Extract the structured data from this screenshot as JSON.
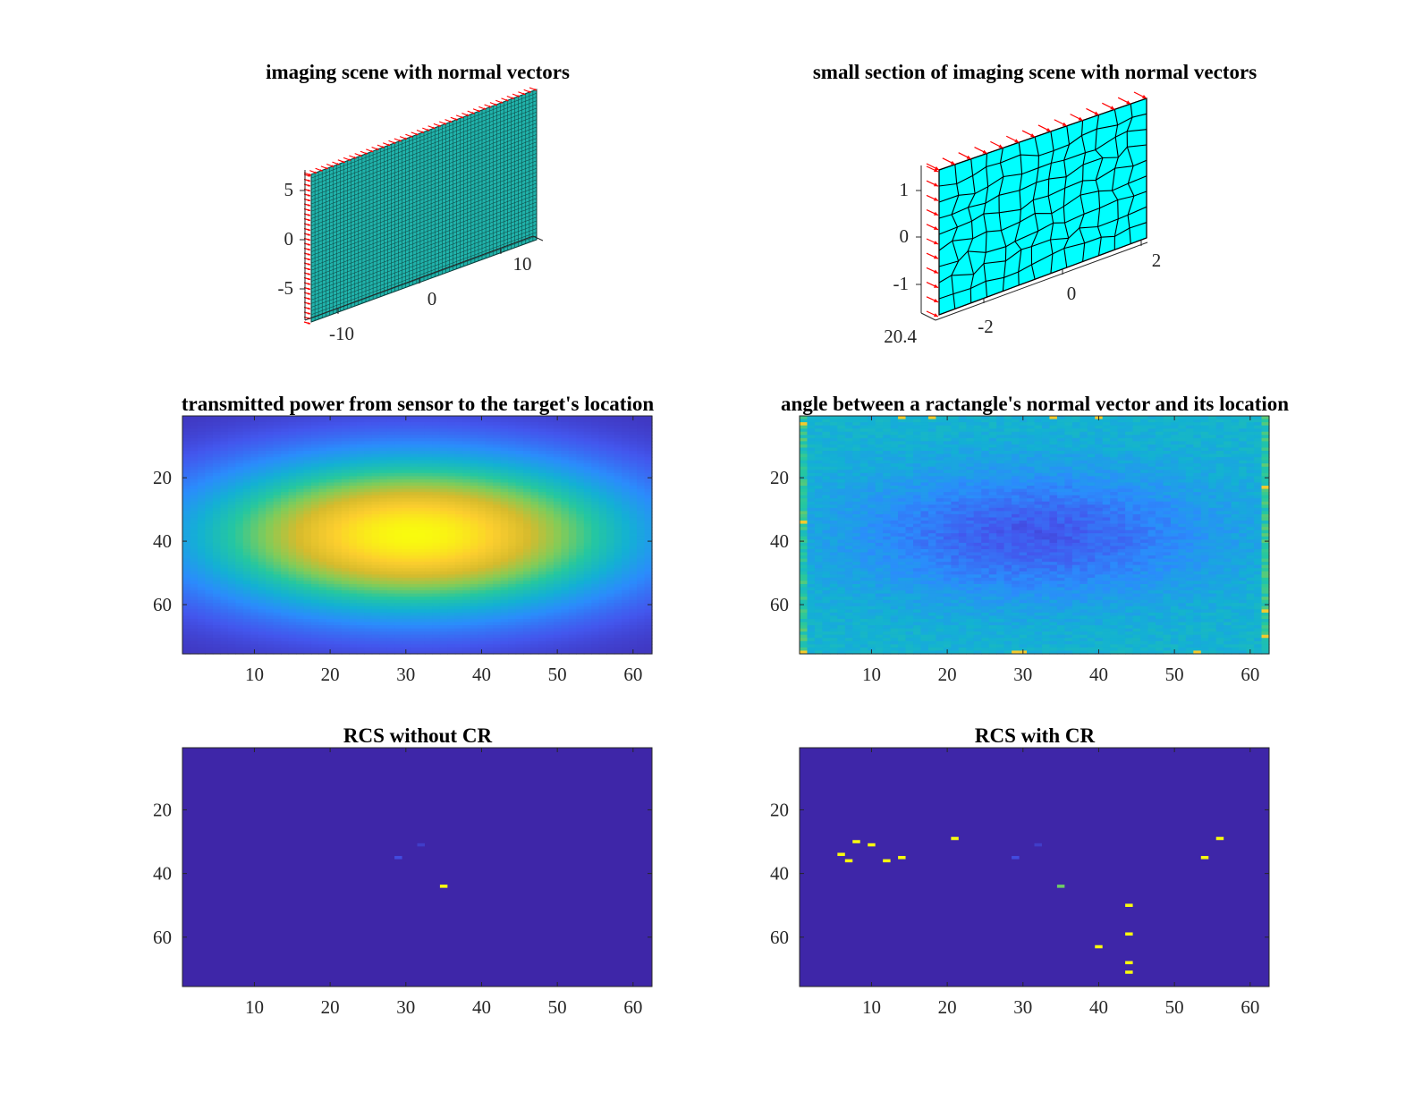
{
  "chart_data": [
    {
      "type": "surface3d",
      "title": "imaging scene with normal vectors",
      "surface_color": "#20b2aa",
      "vector_color": "#ff0000",
      "z_ticks": [
        "5",
        "0",
        "-5"
      ],
      "x_ticks": [
        "-10",
        "0",
        "10"
      ]
    },
    {
      "type": "surface3d",
      "title": "small section of imaging scene with normal vectors",
      "surface_color": "#00ffff",
      "vector_color": "#ff0000",
      "z_ticks": [
        "1",
        "0",
        "-1"
      ],
      "x_ticks": [
        "-2",
        "0",
        "2"
      ],
      "y_ticks": [
        "20.4"
      ]
    },
    {
      "type": "heatmap",
      "title": "transmitted power from sensor to the target's location",
      "colormap": "parula",
      "x_range": [
        0.5,
        62.5
      ],
      "y_range": [
        0.5,
        75.5
      ],
      "x_ticks": [
        "10",
        "20",
        "30",
        "40",
        "50",
        "60"
      ],
      "y_ticks": [
        "20",
        "40",
        "60"
      ],
      "peak": {
        "x": 31,
        "y": 38
      }
    },
    {
      "type": "heatmap",
      "title": "angle between a ractangle's normal vector and its location",
      "colormap": "parula",
      "x_range": [
        0.5,
        62.5
      ],
      "y_range": [
        0.5,
        75.5
      ],
      "x_ticks": [
        "10",
        "20",
        "30",
        "40",
        "50",
        "60"
      ],
      "y_ticks": [
        "20",
        "40",
        "60"
      ],
      "minimum": {
        "x": 31,
        "y": 38
      }
    },
    {
      "type": "heatmap",
      "title": "RCS without CR",
      "colormap": "parula",
      "x_range": [
        0.5,
        62.5
      ],
      "y_range": [
        0.5,
        75.5
      ],
      "x_ticks": [
        "10",
        "20",
        "30",
        "40",
        "50",
        "60"
      ],
      "y_ticks": [
        "20",
        "40",
        "60"
      ],
      "background_color": "#3e26a8",
      "points": [
        {
          "x": 35,
          "y": 44,
          "level": 1.0
        },
        {
          "x": 29,
          "y": 35,
          "level": 0.1
        },
        {
          "x": 32,
          "y": 31,
          "level": 0.06
        }
      ]
    },
    {
      "type": "heatmap",
      "title": "RCS with CR",
      "colormap": "parula",
      "x_range": [
        0.5,
        62.5
      ],
      "y_range": [
        0.5,
        75.5
      ],
      "x_ticks": [
        "10",
        "20",
        "30",
        "40",
        "50",
        "60"
      ],
      "y_ticks": [
        "20",
        "40",
        "60"
      ],
      "background_color": "#3e26a8",
      "points": [
        {
          "x": 6,
          "y": 34,
          "level": 1.0
        },
        {
          "x": 7,
          "y": 36,
          "level": 1.0
        },
        {
          "x": 8,
          "y": 30,
          "level": 1.0
        },
        {
          "x": 10,
          "y": 31,
          "level": 1.0
        },
        {
          "x": 12,
          "y": 36,
          "level": 1.0
        },
        {
          "x": 14,
          "y": 35,
          "level": 1.0
        },
        {
          "x": 21,
          "y": 29,
          "level": 1.0
        },
        {
          "x": 35,
          "y": 44,
          "level": 0.6
        },
        {
          "x": 29,
          "y": 35,
          "level": 0.1
        },
        {
          "x": 32,
          "y": 31,
          "level": 0.06
        },
        {
          "x": 40,
          "y": 63,
          "level": 1.0
        },
        {
          "x": 44,
          "y": 50,
          "level": 1.0
        },
        {
          "x": 44,
          "y": 59,
          "level": 1.0
        },
        {
          "x": 44,
          "y": 68,
          "level": 1.0
        },
        {
          "x": 44,
          "y": 71,
          "level": 1.0
        },
        {
          "x": 54,
          "y": 35,
          "level": 1.0
        },
        {
          "x": 56,
          "y": 29,
          "level": 1.0
        }
      ]
    }
  ]
}
